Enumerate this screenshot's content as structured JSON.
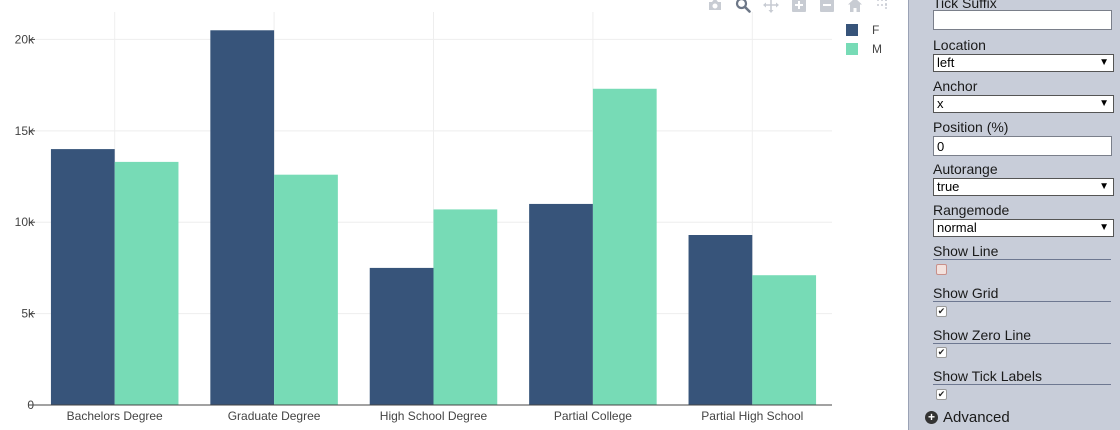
{
  "chart_data": {
    "type": "bar",
    "categories": [
      "Bachelors Degree",
      "Graduate Degree",
      "High School Degree",
      "Partial College",
      "Partial High School"
    ],
    "series": [
      {
        "name": "F",
        "color": "#37547a",
        "values": [
          14000,
          20500,
          7500,
          11000,
          9300
        ]
      },
      {
        "name": "M",
        "color": "#77dbb6",
        "values": [
          13300,
          12600,
          10700,
          17300,
          7100
        ]
      }
    ],
    "yticks": [
      0,
      5000,
      10000,
      15000,
      20000
    ],
    "ytick_labels": [
      "0",
      "5k",
      "10k",
      "15k",
      "20k"
    ],
    "ylim": [
      0,
      21500
    ],
    "grid": true,
    "legend_position": "top-right"
  },
  "modebar": {
    "buttons": [
      {
        "name": "camera-icon",
        "active": false
      },
      {
        "name": "zoom-icon",
        "active": true
      },
      {
        "name": "pan-icon",
        "active": false
      },
      {
        "name": "zoom-in-icon",
        "active": false
      },
      {
        "name": "zoom-out-icon",
        "active": false
      },
      {
        "name": "home-icon",
        "active": false
      },
      {
        "name": "spike-lines-icon",
        "active": false
      }
    ]
  },
  "panel": {
    "tick_suffix_label": "Tick Suffix",
    "tick_suffix_value": "",
    "location_label": "Location",
    "location_value": "left",
    "anchor_label": "Anchor",
    "anchor_value": "x",
    "position_label": "Position (%)",
    "position_value": "0",
    "autorange_label": "Autorange",
    "autorange_value": "true",
    "rangemode_label": "Rangemode",
    "rangemode_value": "normal",
    "show_line_label": "Show Line",
    "show_line_checked": false,
    "show_grid_label": "Show Grid",
    "show_grid_checked": true,
    "show_zero_line_label": "Show Zero Line",
    "show_zero_line_checked": true,
    "show_tick_labels_label": "Show Tick Labels",
    "show_tick_labels_checked": true,
    "advanced_label": "Advanced",
    "check_glyph": "✔",
    "caret_glyph": "▼"
  }
}
